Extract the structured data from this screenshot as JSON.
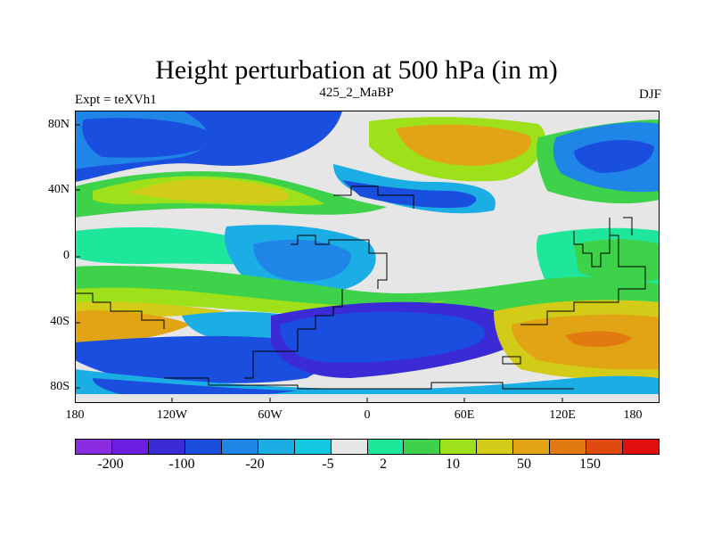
{
  "title": "Height perturbation at 500 hPa (in m)",
  "left_label": "Expt = teXVh1",
  "center_label": "425_2_MaBP",
  "right_label": "DJF",
  "y_ticks": [
    "80N",
    "40N",
    "0",
    "40S",
    "80S"
  ],
  "x_ticks": [
    "180",
    "120W",
    "60W",
    "0",
    "60E",
    "120E",
    "180"
  ],
  "colorbar": {
    "colors": [
      "#8b2be2",
      "#6a1ee0",
      "#3a2bd6",
      "#1a4ede",
      "#1f86e8",
      "#1aaee5",
      "#14c8e0",
      "#e6e6e6",
      "#1ee69a",
      "#3ed24a",
      "#9ee01a",
      "#d2cc18",
      "#e0a414",
      "#e27a10",
      "#e04a10",
      "#e01010"
    ],
    "labels": [
      "-200",
      "-100",
      "-20",
      "-5",
      "2",
      "10",
      "50",
      "150"
    ]
  },
  "map": {
    "background_color": "#e6e6e6",
    "lon_range": [
      -180,
      180
    ],
    "lat_range": [
      -90,
      90
    ]
  }
}
